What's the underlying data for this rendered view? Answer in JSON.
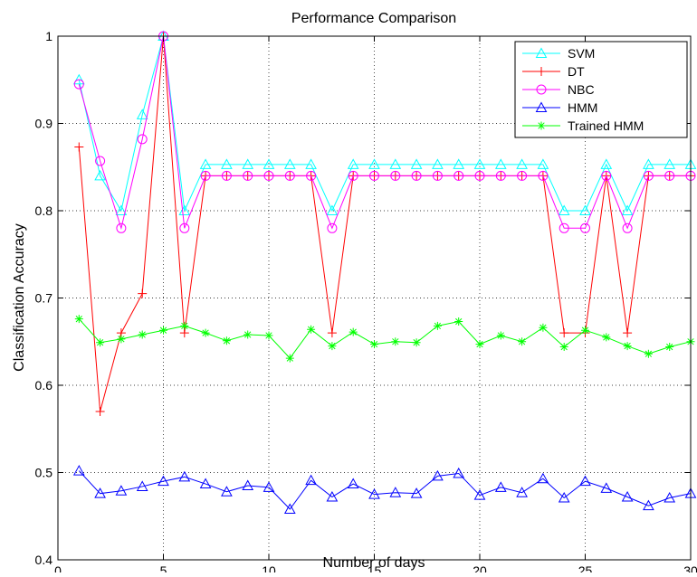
{
  "chart_data": {
    "type": "line",
    "title": "Performance Comparison",
    "xlabel": "Number of days",
    "ylabel": "Classification Accuracy",
    "xlim": [
      0,
      30
    ],
    "ylim": [
      0.4,
      1
    ],
    "xticks": [
      0,
      5,
      10,
      15,
      20,
      25,
      30
    ],
    "yticks": [
      0.4,
      0.5,
      0.6,
      0.7,
      0.8,
      0.9,
      1
    ],
    "xtick_labels": [
      "0",
      "5",
      "10",
      "15",
      "20",
      "25",
      "30"
    ],
    "ytick_labels": [
      "0.4",
      "0.5",
      "0.6",
      "0.7",
      "0.8",
      "0.9",
      "1"
    ],
    "grid": true,
    "legend_position": "top-right",
    "x": [
      1,
      2,
      3,
      4,
      5,
      6,
      7,
      8,
      9,
      10,
      11,
      12,
      13,
      14,
      15,
      16,
      17,
      18,
      19,
      20,
      21,
      22,
      23,
      24,
      25,
      26,
      27,
      28,
      29,
      30
    ],
    "series": [
      {
        "name": "SVM",
        "color": "#00ffff",
        "marker": "triangle-up",
        "values": [
          0.95,
          0.84,
          0.8,
          0.91,
          1.0,
          0.8,
          0.853,
          0.853,
          0.853,
          0.853,
          0.853,
          0.853,
          0.8,
          0.853,
          0.853,
          0.853,
          0.853,
          0.853,
          0.853,
          0.853,
          0.853,
          0.853,
          0.853,
          0.8,
          0.8,
          0.853,
          0.8,
          0.853,
          0.853,
          0.853
        ]
      },
      {
        "name": "DT",
        "color": "#ff0000",
        "marker": "plus",
        "values": [
          0.873,
          0.57,
          0.66,
          0.705,
          1.0,
          0.66,
          0.84,
          0.84,
          0.84,
          0.84,
          0.84,
          0.84,
          0.66,
          0.84,
          0.84,
          0.84,
          0.84,
          0.84,
          0.84,
          0.84,
          0.84,
          0.84,
          0.84,
          0.66,
          0.66,
          0.84,
          0.66,
          0.84,
          0.84,
          0.84
        ]
      },
      {
        "name": "NBC",
        "color": "#ff00ff",
        "marker": "circle",
        "values": [
          0.945,
          0.857,
          0.78,
          0.882,
          1.0,
          0.78,
          0.84,
          0.84,
          0.84,
          0.84,
          0.84,
          0.84,
          0.78,
          0.84,
          0.84,
          0.84,
          0.84,
          0.84,
          0.84,
          0.84,
          0.84,
          0.84,
          0.84,
          0.78,
          0.78,
          0.84,
          0.78,
          0.84,
          0.84,
          0.84
        ]
      },
      {
        "name": "HMM",
        "color": "#0000ff",
        "marker": "triangle-up",
        "values": [
          0.502,
          0.476,
          0.479,
          0.484,
          0.49,
          0.495,
          0.487,
          0.478,
          0.485,
          0.483,
          0.458,
          0.491,
          0.472,
          0.487,
          0.475,
          0.477,
          0.476,
          0.496,
          0.499,
          0.474,
          0.483,
          0.477,
          0.493,
          0.471,
          0.49,
          0.482,
          0.472,
          0.462,
          0.471,
          0.476
        ]
      },
      {
        "name": "Trained HMM",
        "color": "#00ff00",
        "marker": "asterisk",
        "values": [
          0.676,
          0.649,
          0.653,
          0.658,
          0.663,
          0.668,
          0.66,
          0.651,
          0.658,
          0.657,
          0.631,
          0.664,
          0.645,
          0.661,
          0.647,
          0.65,
          0.649,
          0.668,
          0.673,
          0.647,
          0.657,
          0.65,
          0.666,
          0.644,
          0.663,
          0.655,
          0.645,
          0.636,
          0.644,
          0.65
        ]
      }
    ]
  }
}
